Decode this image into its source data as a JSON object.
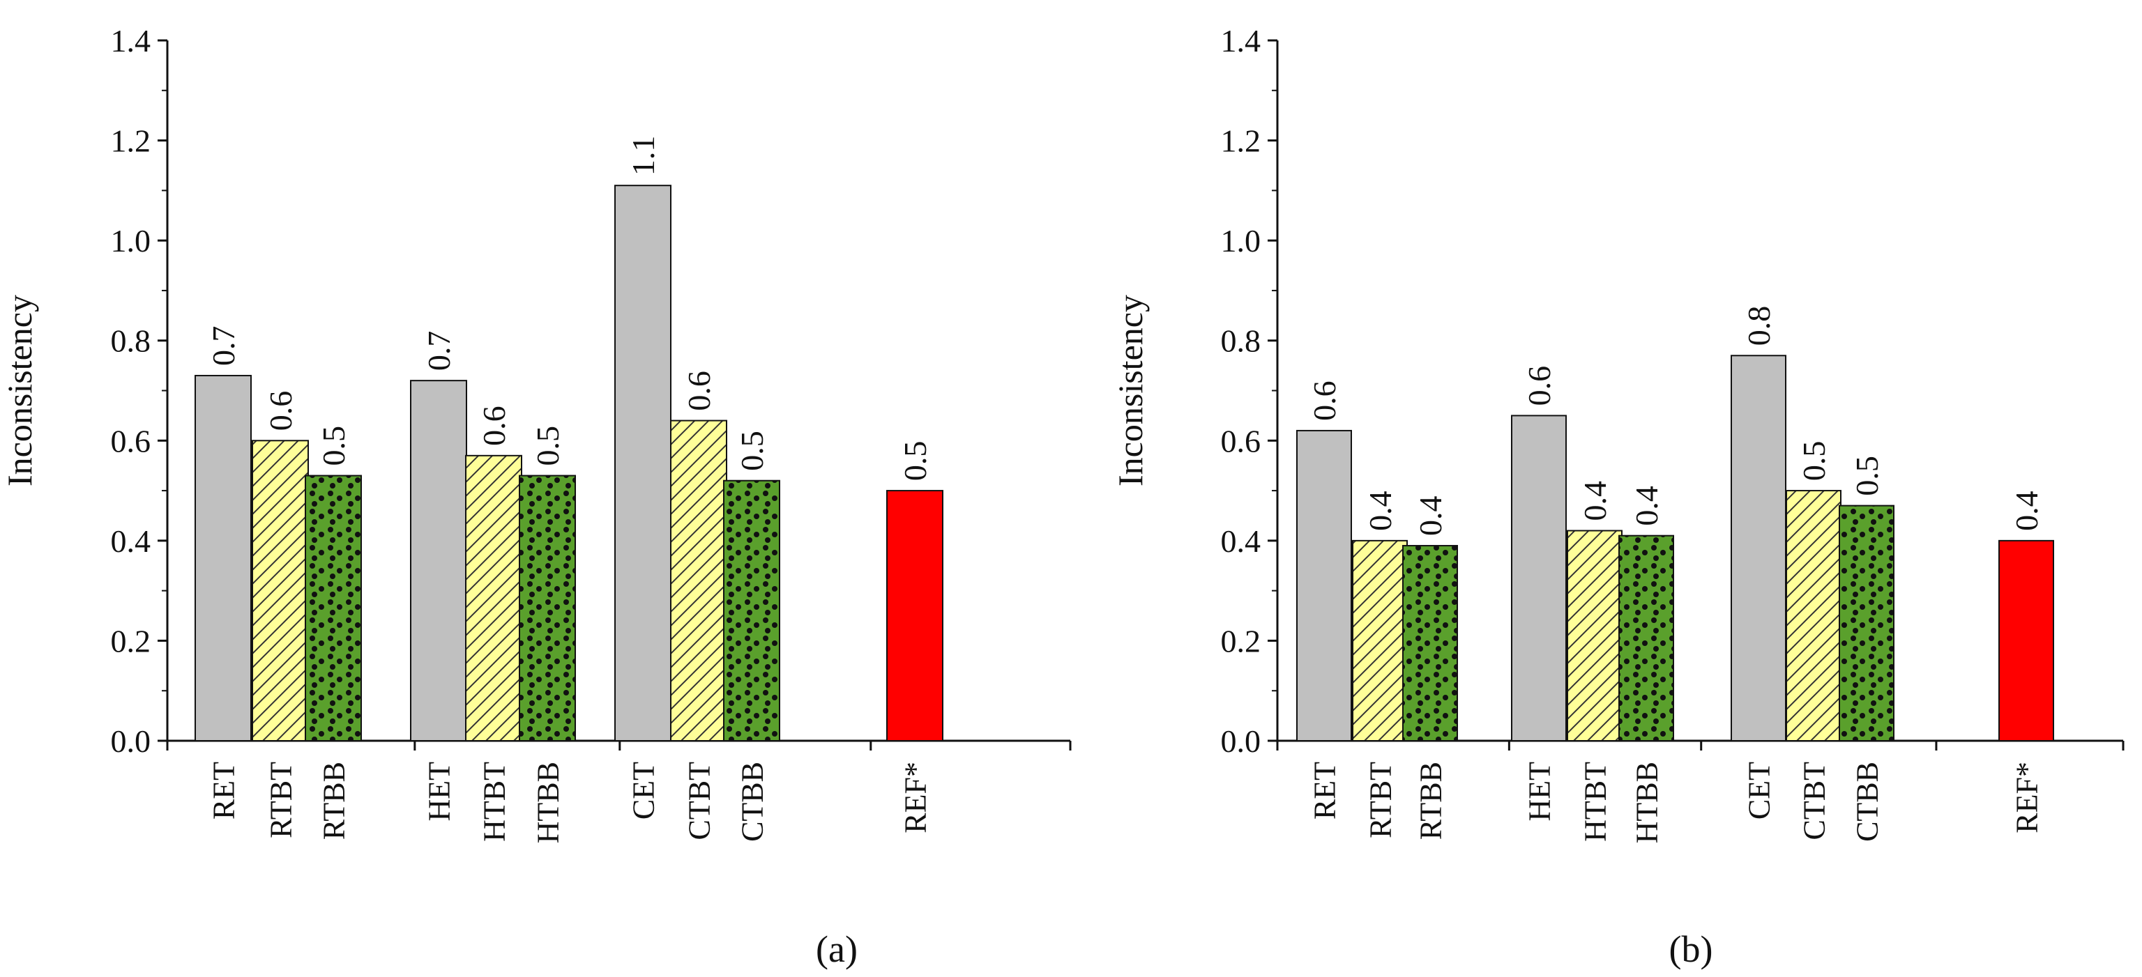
{
  "colors": {
    "ET": "#c0c0c0",
    "TBT": "#ffff99",
    "TBB": "#5aa02c",
    "REF": "#ff0000",
    "axis": "#111111"
  },
  "chart_data": [
    {
      "type": "bar",
      "panel_label": "(a)",
      "ylabel": "Inconsistency",
      "ylim": [
        0,
        1.4
      ],
      "yticks": [
        "0.0",
        "0.2",
        "0.4",
        "0.6",
        "0.8",
        "1.0",
        "1.2",
        "1.4"
      ],
      "grid": false,
      "bars": [
        {
          "category": "RET",
          "value": 0.73,
          "label": "0.7",
          "style": "ET"
        },
        {
          "category": "RTBT",
          "value": 0.6,
          "label": "0.6",
          "style": "TBT"
        },
        {
          "category": "RTBB",
          "value": 0.53,
          "label": "0.5",
          "style": "TBB"
        },
        {
          "category": "HET",
          "value": 0.72,
          "label": "0.7",
          "style": "ET"
        },
        {
          "category": "HTBT",
          "value": 0.57,
          "label": "0.6",
          "style": "TBT"
        },
        {
          "category": "HTBB",
          "value": 0.53,
          "label": "0.5",
          "style": "TBB"
        },
        {
          "category": "CET",
          "value": 1.11,
          "label": "1.1",
          "style": "ET"
        },
        {
          "category": "CTBT",
          "value": 0.64,
          "label": "0.6",
          "style": "TBT"
        },
        {
          "category": "CTBB",
          "value": 0.52,
          "label": "0.5",
          "style": "TBB"
        },
        {
          "category": "REF*",
          "value": 0.5,
          "label": "0.5",
          "style": "REF"
        }
      ]
    },
    {
      "type": "bar",
      "panel_label": "(b)",
      "ylabel": "Inconsistency",
      "ylim": [
        0,
        1.4
      ],
      "yticks": [
        "0.0",
        "0.2",
        "0.4",
        "0.6",
        "0.8",
        "1.0",
        "1.2",
        "1.4"
      ],
      "grid": false,
      "bars": [
        {
          "category": "RET",
          "value": 0.62,
          "label": "0.6",
          "style": "ET"
        },
        {
          "category": "RTBT",
          "value": 0.4,
          "label": "0.4",
          "style": "TBT"
        },
        {
          "category": "RTBB",
          "value": 0.39,
          "label": "0.4",
          "style": "TBB"
        },
        {
          "category": "HET",
          "value": 0.65,
          "label": "0.6",
          "style": "ET"
        },
        {
          "category": "HTBT",
          "value": 0.42,
          "label": "0.4",
          "style": "TBT"
        },
        {
          "category": "HTBB",
          "value": 0.41,
          "label": "0.4",
          "style": "TBB"
        },
        {
          "category": "CET",
          "value": 0.77,
          "label": "0.8",
          "style": "ET"
        },
        {
          "category": "CTBT",
          "value": 0.5,
          "label": "0.5",
          "style": "TBT"
        },
        {
          "category": "CTBB",
          "value": 0.47,
          "label": "0.5",
          "style": "TBB"
        },
        {
          "category": "REF*",
          "value": 0.4,
          "label": "0.4",
          "style": "REF"
        }
      ]
    }
  ]
}
